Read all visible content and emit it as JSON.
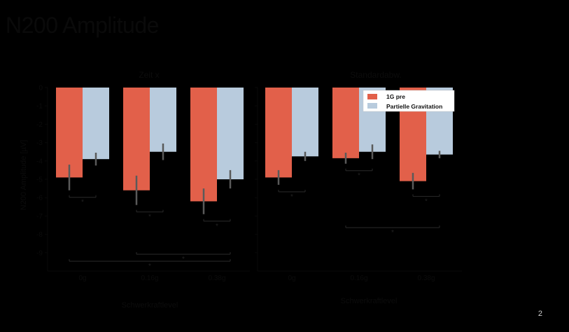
{
  "slide": {
    "title": "N200 Amplitude",
    "page_number": "2"
  },
  "colors": {
    "background": "#000000",
    "pre": "#e2604a",
    "partial": "#b8cbdd",
    "error_bar": "#5a5a5a",
    "axis": "#0a0a0a"
  },
  "chart_data": {
    "type": "bar",
    "ylabel": "N200 Amplitude [µV]",
    "ylim": [
      -10,
      0
    ],
    "yticks": [
      0,
      -1,
      -2,
      -3,
      -4,
      -5,
      -6,
      -7,
      -8,
      -9
    ],
    "legend": {
      "entries": [
        "1G pre",
        "Partielle Gravitation"
      ],
      "placement": "top-right of right panel"
    },
    "panels": [
      {
        "title": "Zeit x",
        "xlabel": "Schwerkraftlevel",
        "categories": [
          "0g",
          "0.16g",
          "0.38g"
        ],
        "series": [
          {
            "name": "1G pre",
            "values": [
              -4.9,
              -5.6,
              -6.2
            ],
            "errors": [
              0.7,
              0.8,
              0.7
            ]
          },
          {
            "name": "Partielle Gravitation",
            "values": [
              -3.9,
              -3.5,
              -5.0
            ],
            "errors": [
              0.35,
              0.45,
              0.5
            ]
          }
        ],
        "significance": [
          {
            "from": 0,
            "to": 0,
            "label": "*"
          },
          {
            "from": 1,
            "to": 1,
            "label": "*"
          },
          {
            "from": 2,
            "to": 2,
            "label": "*"
          },
          {
            "from": 1,
            "to": 2,
            "label": "*"
          },
          {
            "from": 0,
            "to": 2,
            "label": "*"
          }
        ]
      },
      {
        "title": "Standardabw.",
        "xlabel": "Schwerkraftlevel",
        "categories": [
          "0g",
          "0.16g",
          "0.38g"
        ],
        "series": [
          {
            "name": "1G pre",
            "values": [
              -4.9,
              -3.85,
              -5.1
            ],
            "errors": [
              0.4,
              0.3,
              0.45
            ]
          },
          {
            "name": "Partielle Gravitation",
            "values": [
              -3.75,
              -3.5,
              -3.65
            ],
            "errors": [
              0.25,
              0.4,
              0.2
            ]
          }
        ],
        "significance": [
          {
            "from": 0,
            "to": 0,
            "label": "*"
          },
          {
            "from": 1,
            "to": 1,
            "label": "*"
          },
          {
            "from": 2,
            "to": 2,
            "label": "*"
          },
          {
            "from": 1,
            "to": 2,
            "label": "*"
          }
        ]
      }
    ]
  }
}
